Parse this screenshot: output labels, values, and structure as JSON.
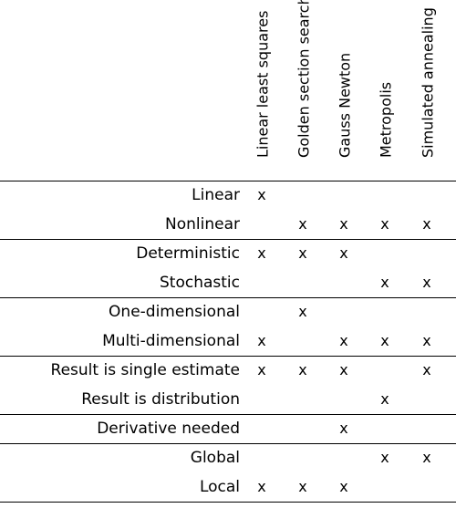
{
  "columns": [
    "Linear least squares",
    "Golden section search",
    "Gauss Newton",
    "Metropolis",
    "Simulated annealing"
  ],
  "mark_symbol": "x",
  "groups": [
    {
      "rows": [
        {
          "label": "Linear",
          "marks": [
            true,
            false,
            false,
            false,
            false
          ]
        },
        {
          "label": "Nonlinear",
          "marks": [
            false,
            true,
            true,
            true,
            true
          ]
        }
      ]
    },
    {
      "rows": [
        {
          "label": "Deterministic",
          "marks": [
            true,
            true,
            true,
            false,
            false
          ]
        },
        {
          "label": "Stochastic",
          "marks": [
            false,
            false,
            false,
            true,
            true
          ]
        }
      ]
    },
    {
      "rows": [
        {
          "label": "One-dimensional",
          "marks": [
            false,
            true,
            false,
            false,
            false
          ]
        },
        {
          "label": "Multi-dimensional",
          "marks": [
            true,
            false,
            true,
            true,
            true
          ]
        }
      ]
    },
    {
      "rows": [
        {
          "label": "Result is single estimate",
          "marks": [
            true,
            true,
            true,
            false,
            true
          ]
        },
        {
          "label": "Result is distribution",
          "marks": [
            false,
            false,
            false,
            true,
            false
          ]
        }
      ]
    },
    {
      "rows": [
        {
          "label": "Derivative needed",
          "marks": [
            false,
            false,
            true,
            false,
            false
          ]
        }
      ]
    },
    {
      "rows": [
        {
          "label": "Global",
          "marks": [
            false,
            false,
            false,
            true,
            true
          ]
        },
        {
          "label": "Local",
          "marks": [
            true,
            true,
            true,
            false,
            false
          ]
        }
      ]
    }
  ]
}
